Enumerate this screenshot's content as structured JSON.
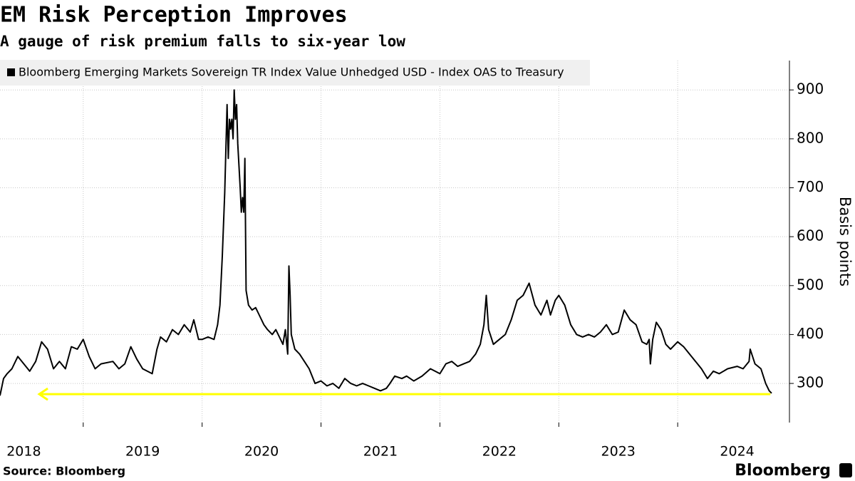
{
  "chart_data": {
    "type": "line",
    "title": "EM Risk Perception Improves",
    "subtitle": "A gauge of risk premium falls to six-year low",
    "y_label": "Basis points",
    "source": "Source: Bloomberg",
    "brand": "Bloomberg",
    "x": [
      2018.3,
      2018.33,
      2018.36,
      2018.4,
      2018.45,
      2018.5,
      2018.55,
      2018.6,
      2018.65,
      2018.7,
      2018.75,
      2018.8,
      2018.85,
      2018.9,
      2018.95,
      2019.0,
      2019.05,
      2019.1,
      2019.15,
      2019.25,
      2019.3,
      2019.35,
      2019.4,
      2019.45,
      2019.5,
      2019.58,
      2019.62,
      2019.65,
      2019.7,
      2019.75,
      2019.8,
      2019.85,
      2019.9,
      2019.93,
      2019.97,
      2020.0,
      2020.05,
      2020.1,
      2020.13,
      2020.15,
      2020.17,
      2020.19,
      2020.21,
      2020.22,
      2020.23,
      2020.24,
      2020.25,
      2020.26,
      2020.27,
      2020.28,
      2020.29,
      2020.3,
      2020.32,
      2020.33,
      2020.34,
      2020.35,
      2020.36,
      2020.37,
      2020.39,
      2020.42,
      2020.45,
      2020.48,
      2020.52,
      2020.55,
      2020.59,
      2020.62,
      2020.68,
      2020.7,
      2020.72,
      2020.73,
      2020.74,
      2020.75,
      2020.78,
      2020.82,
      2020.86,
      2020.9,
      2020.95,
      2021.0,
      2021.05,
      2021.1,
      2021.15,
      2021.2,
      2021.25,
      2021.3,
      2021.35,
      2021.4,
      2021.45,
      2021.5,
      2021.55,
      2021.58,
      2021.62,
      2021.68,
      2021.72,
      2021.78,
      2021.85,
      2021.92,
      2021.96,
      2022.0,
      2022.05,
      2022.1,
      2022.15,
      2022.2,
      2022.25,
      2022.3,
      2022.34,
      2022.37,
      2022.39,
      2022.41,
      2022.45,
      2022.5,
      2022.55,
      2022.6,
      2022.65,
      2022.7,
      2022.75,
      2022.8,
      2022.85,
      2022.9,
      2022.93,
      2022.97,
      2023.0,
      2023.05,
      2023.1,
      2023.15,
      2023.2,
      2023.25,
      2023.3,
      2023.35,
      2023.4,
      2023.45,
      2023.5,
      2023.55,
      2023.6,
      2023.65,
      2023.7,
      2023.74,
      2023.76,
      2023.77,
      2023.79,
      2023.82,
      2023.86,
      2023.9,
      2023.94,
      2024.0,
      2024.05,
      2024.1,
      2024.15,
      2024.2,
      2024.25,
      2024.3,
      2024.35,
      2024.42,
      2024.5,
      2024.55,
      2024.6,
      2024.61,
      2024.65,
      2024.7,
      2024.74,
      2024.77,
      2024.79
    ],
    "series": [
      {
        "name": "Bloomberg Emerging Markets Sovereign TR Index Value Unhedged USD - Index OAS to Treasury",
        "color": "#000000",
        "values": [
          275,
          310,
          320,
          330,
          355,
          340,
          325,
          345,
          385,
          370,
          330,
          345,
          330,
          375,
          370,
          390,
          355,
          330,
          340,
          345,
          330,
          340,
          375,
          350,
          330,
          320,
          370,
          395,
          385,
          410,
          400,
          420,
          405,
          430,
          390,
          390,
          395,
          390,
          420,
          460,
          560,
          690,
          870,
          760,
          840,
          820,
          840,
          800,
          900,
          840,
          870,
          790,
          700,
          650,
          680,
          650,
          760,
          490,
          460,
          450,
          455,
          440,
          420,
          410,
          400,
          410,
          380,
          410,
          360,
          540,
          480,
          400,
          370,
          360,
          345,
          330,
          300,
          305,
          295,
          300,
          290,
          310,
          300,
          295,
          300,
          295,
          290,
          285,
          290,
          300,
          315,
          310,
          315,
          305,
          315,
          330,
          325,
          320,
          340,
          345,
          335,
          340,
          345,
          360,
          380,
          420,
          480,
          410,
          380,
          390,
          400,
          430,
          470,
          480,
          505,
          460,
          440,
          470,
          440,
          470,
          480,
          460,
          420,
          400,
          395,
          400,
          395,
          405,
          420,
          400,
          405,
          450,
          430,
          420,
          385,
          380,
          390,
          340,
          390,
          425,
          410,
          380,
          370,
          385,
          375,
          360,
          345,
          330,
          310,
          325,
          320,
          330,
          335,
          330,
          345,
          370,
          340,
          330,
          300,
          285,
          280
        ]
      }
    ],
    "low_line": {
      "value": 278,
      "xlim": [
        2018.63,
        2024.78
      ],
      "color": "#ffff00"
    },
    "xlim": [
      2018.3,
      2024.94
    ],
    "xticks": [
      2018,
      2019,
      2020,
      2021,
      2022,
      2023,
      2024
    ],
    "ylim": [
      220,
      960
    ],
    "yticks": [
      300,
      400,
      500,
      600,
      700,
      800,
      900
    ],
    "grid": true
  }
}
